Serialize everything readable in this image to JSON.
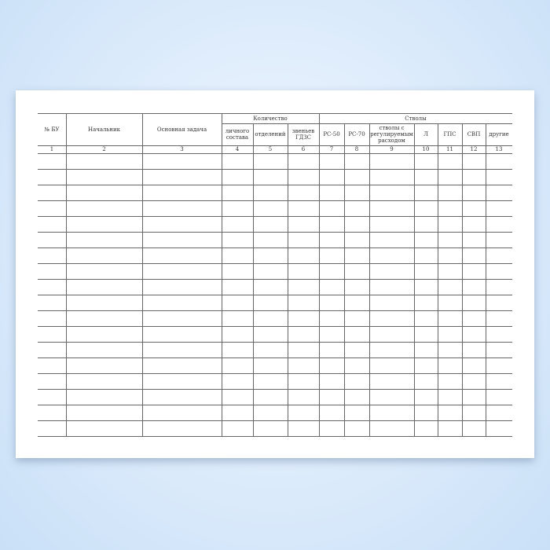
{
  "table": {
    "group_headers": {
      "quantity": "Количество",
      "nozzles": "Стволы"
    },
    "columns": [
      "№ БУ",
      "Начальник",
      "Основная задача",
      "личного состава",
      "отделений",
      "звеньев ГДЗС",
      "РС-50",
      "РС-70",
      "стволы с регулируемым расходом",
      "Л",
      "ГПС",
      "СВП",
      "другие"
    ],
    "column_numbers": [
      "1",
      "2",
      "3",
      "4",
      "5",
      "6",
      "7",
      "8",
      "9",
      "10",
      "11",
      "12",
      "13"
    ],
    "body_rows": 18
  }
}
